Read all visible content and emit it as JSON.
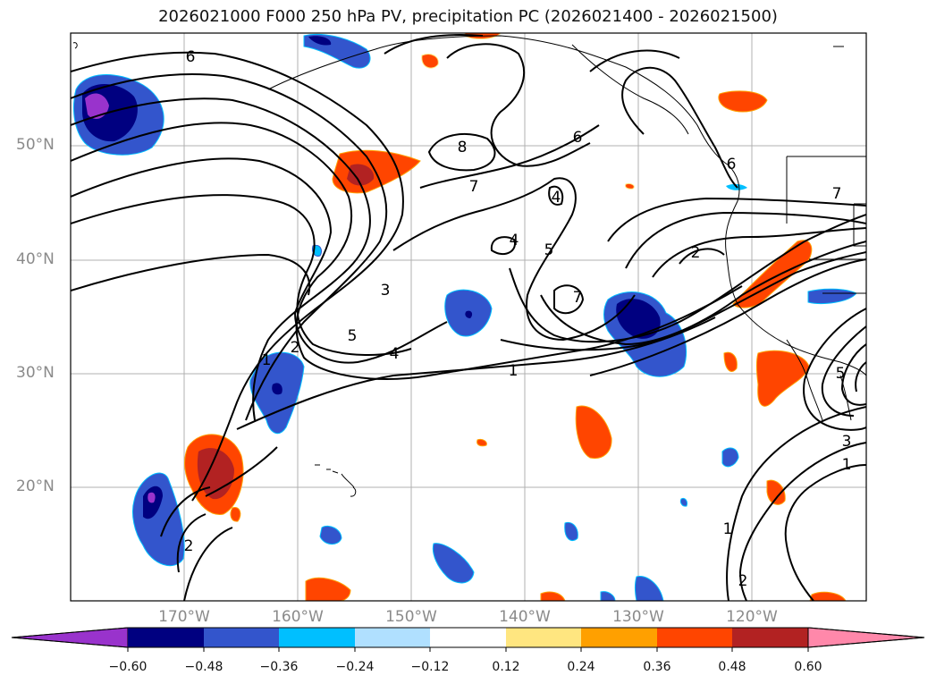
{
  "title": "2026021000 F000 250 hPa PV, precipitation PC (2026021400 - 2026021500)",
  "lat_labels": [
    "50°N",
    "40°N",
    "30°N",
    "20°N"
  ],
  "lon_labels": [
    "170°W",
    "160°W",
    "150°W",
    "140°W",
    "130°W",
    "120°W"
  ],
  "colorbar": {
    "ticks": [
      "−0.60",
      "−0.48",
      "−0.36",
      "−0.24",
      "−0.12",
      "0.12",
      "0.24",
      "0.36",
      "0.48",
      "0.60"
    ],
    "colors": [
      "#9933cc",
      "#000080",
      "#3355cc",
      "#00bfff",
      "#b0e0ff",
      "#ffffff",
      "#ffe680",
      "#ffa000",
      "#ff4500",
      "#b22222",
      "#ff88aa"
    ]
  },
  "contour_labels": [
    "6",
    "8",
    "7",
    "6",
    "4",
    "5",
    "4",
    "7",
    "2",
    "3",
    "5",
    "4",
    "1",
    "2",
    "1",
    "2",
    "1",
    "3",
    "1",
    "2",
    "5",
    "6",
    "7"
  ]
}
